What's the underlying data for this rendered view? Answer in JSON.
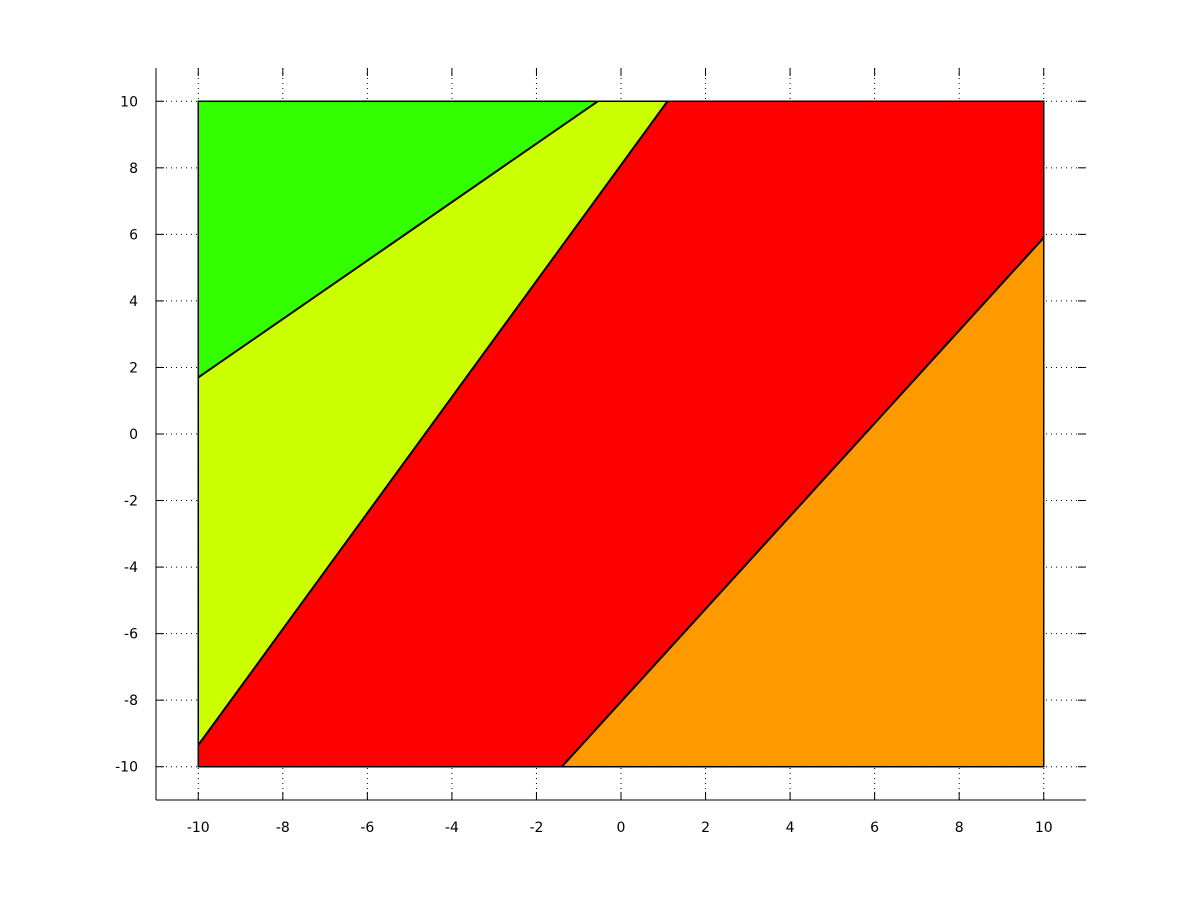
{
  "chart_data": {
    "type": "area",
    "title": "",
    "xlabel": "",
    "ylabel": "",
    "xlim": [
      -11,
      11
    ],
    "ylim": [
      -11,
      11
    ],
    "grid": true,
    "x_ticks": [
      "-10",
      "-8",
      "-6",
      "-4",
      "-2",
      "0",
      "2",
      "4",
      "6",
      "8",
      "10"
    ],
    "y_ticks": [
      "-10",
      "-8",
      "-6",
      "-4",
      "-2",
      "0",
      "2",
      "4",
      "6",
      "8",
      "10"
    ],
    "region_box": {
      "x": [
        -10,
        10
      ],
      "y": [
        -10,
        10
      ]
    },
    "regions": [
      {
        "color": "#33ff00",
        "polygon": [
          [
            -10,
            10
          ],
          [
            -0.55,
            10
          ],
          [
            -10,
            1.7
          ]
        ]
      },
      {
        "color": "#ccff00",
        "polygon": [
          [
            -10,
            1.7
          ],
          [
            -0.55,
            10
          ],
          [
            1.1,
            10
          ],
          [
            -10,
            -9.35
          ]
        ]
      },
      {
        "color": "#ff0000",
        "polygon": [
          [
            -10,
            -9.35
          ],
          [
            1.1,
            10
          ],
          [
            10,
            10
          ],
          [
            10,
            5.9
          ],
          [
            -1.4,
            -10
          ],
          [
            -10,
            -10
          ]
        ]
      },
      {
        "color": "#ff9900",
        "polygon": [
          [
            -1.4,
            -10
          ],
          [
            10,
            5.9
          ],
          [
            10,
            -10
          ]
        ]
      }
    ],
    "boundaries": [
      [
        [
          -10,
          1.7
        ],
        [
          -0.55,
          10
        ]
      ],
      [
        [
          -10,
          -9.35
        ],
        [
          1.1,
          10
        ]
      ],
      [
        [
          -1.4,
          -10
        ],
        [
          10,
          5.9
        ]
      ]
    ]
  }
}
